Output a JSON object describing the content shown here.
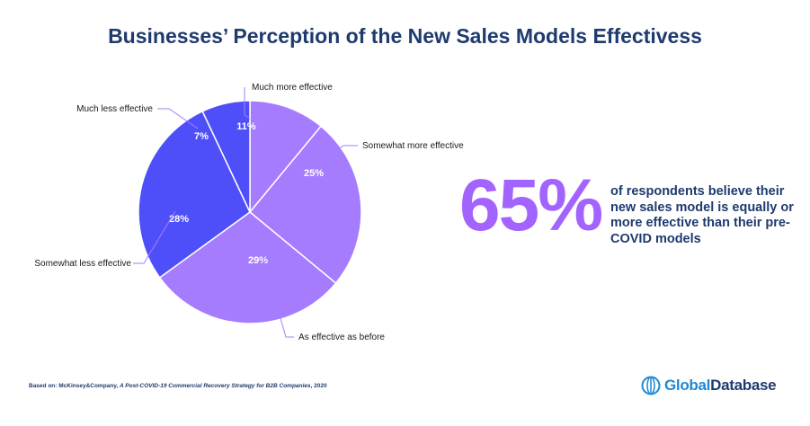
{
  "title": "Businesses’ Perception of the New Sales Models Effectivess",
  "chart_data": {
    "type": "pie",
    "slices": [
      {
        "label": "Much more effective",
        "value": 11,
        "display": "11%",
        "color": "#a67cff"
      },
      {
        "label": "Somewhat more effective",
        "value": 25,
        "display": "25%",
        "color": "#a67cff"
      },
      {
        "label": "As effective as before",
        "value": 29,
        "display": "29%",
        "color": "#a67cff"
      },
      {
        "label": "Somewhat less effective",
        "value": 28,
        "display": "28%",
        "color": "#4f4ffa"
      },
      {
        "label": "Much less effective",
        "value": 7,
        "display": "7%",
        "color": "#4f4ffa"
      }
    ],
    "start_angle_deg": 0,
    "direction": "clockwise"
  },
  "callout": {
    "stat": "65%",
    "text": "of respondents believe their new sales model is equally or more effective than their pre-COVID models"
  },
  "source": {
    "prefix": "Based on: McKinsey&Company, ",
    "italic": "A Post-COVID-19 Commercial Recovery Strategy for B2B Companies",
    "suffix": ", 2020"
  },
  "logo": {
    "part1": "Global",
    "part2": "Database"
  },
  "colors": {
    "title": "#1f3a6e",
    "accent": "#a263ff",
    "leader_line": "#a67cff",
    "logo_blue": "#1e88d6"
  }
}
